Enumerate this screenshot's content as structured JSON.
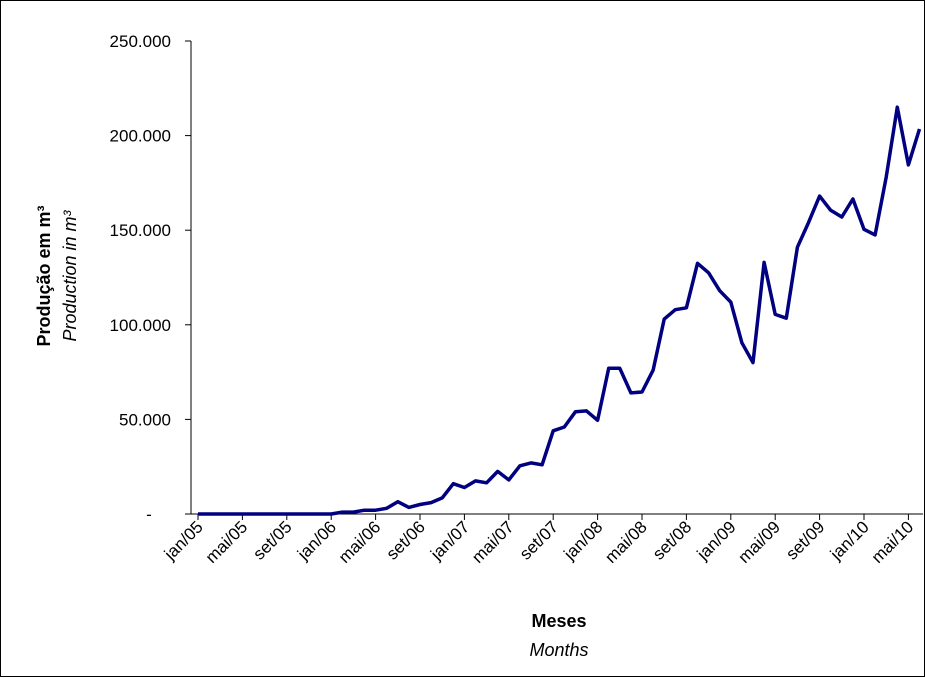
{
  "chart_data": {
    "type": "line",
    "title": "",
    "xlabel": "Meses",
    "xlabel_en": "Months",
    "ylabel": "Produção em m³",
    "ylabel_en": "Production in m³",
    "ylim": [
      0,
      250000
    ],
    "y_ticks": [
      {
        "value": 0,
        "label": "-"
      },
      {
        "value": 50000,
        "label": "50.000"
      },
      {
        "value": 100000,
        "label": "100.000"
      },
      {
        "value": 150000,
        "label": "150.000"
      },
      {
        "value": 200000,
        "label": "200.000"
      },
      {
        "value": 250000,
        "label": "250.000"
      }
    ],
    "x_tick_labels": [
      "jan/05",
      "mai/05",
      "set/05",
      "jan/06",
      "mai/06",
      "set/06",
      "jan/07",
      "mai/07",
      "set/07",
      "jan/08",
      "mai/08",
      "set/08",
      "jan/09",
      "mai/09",
      "set/09",
      "jan/10",
      "mai/10"
    ],
    "x_tick_every": 4,
    "grid": false,
    "legend": "none",
    "series": [
      {
        "color": "#000080",
        "x": [
          "jan/05",
          "fev/05",
          "mar/05",
          "abr/05",
          "mai/05",
          "jun/05",
          "jul/05",
          "ago/05",
          "set/05",
          "out/05",
          "nov/05",
          "dez/05",
          "jan/06",
          "fev/06",
          "mar/06",
          "abr/06",
          "mai/06",
          "jun/06",
          "jul/06",
          "ago/06",
          "set/06",
          "out/06",
          "nov/06",
          "dez/06",
          "jan/07",
          "fev/07",
          "mar/07",
          "abr/07",
          "mai/07",
          "jun/07",
          "jul/07",
          "ago/07",
          "set/07",
          "out/07",
          "nov/07",
          "dez/07",
          "jan/08",
          "fev/08",
          "mar/08",
          "abr/08",
          "mai/08",
          "jun/08",
          "jul/08",
          "ago/08",
          "set/08",
          "out/08",
          "nov/08",
          "dez/08",
          "jan/09",
          "fev/09",
          "mar/09",
          "abr/09",
          "mai/09",
          "jun/09",
          "jul/09",
          "ago/09",
          "set/09",
          "out/09",
          "nov/09",
          "dez/09",
          "jan/10",
          "fev/10",
          "mar/10",
          "abr/10",
          "mai/10",
          "jun/10"
        ],
        "values": [
          0,
          0,
          0,
          0,
          0,
          0,
          0,
          0,
          0,
          0,
          0,
          0,
          0,
          1000,
          1000,
          2000,
          2000,
          3000,
          6500,
          3500,
          5000,
          6000,
          8500,
          16000,
          14000,
          17500,
          16500,
          22500,
          18000,
          25500,
          27000,
          26000,
          44000,
          46000,
          54000,
          54500,
          49500,
          77000,
          77000,
          64000,
          64500,
          76000,
          103000,
          108000,
          109000,
          132500,
          127500,
          118000,
          112000,
          90500,
          80000,
          133000,
          105500,
          103500,
          141000,
          154000,
          168000,
          160500,
          157000,
          166500,
          150500,
          147500,
          178000,
          215000,
          184500,
          203500
        ]
      }
    ]
  }
}
